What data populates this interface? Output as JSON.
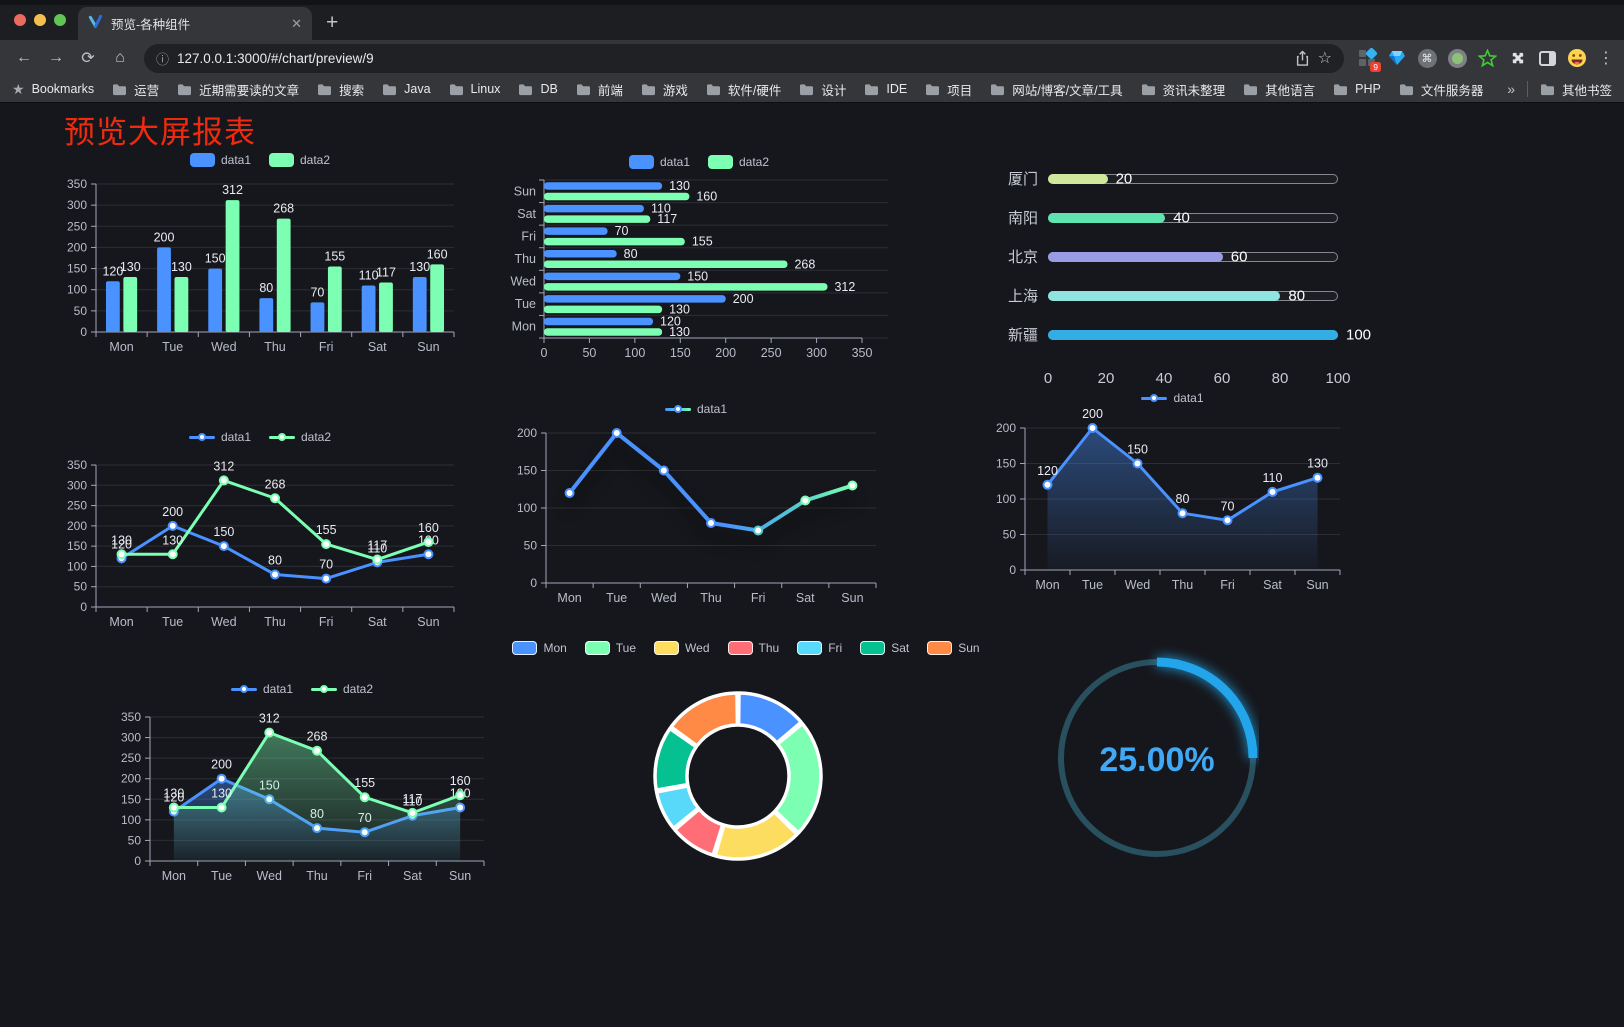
{
  "browser": {
    "tab_title": "预览-各种组件",
    "url": "127.0.0.1:3000/#/chart/preview/9",
    "extension_badge": "9",
    "icons": {
      "close": "✕",
      "plus": "+",
      "back": "←",
      "forward": "→",
      "reload": "⟳",
      "home": "⌂",
      "info": "ⓘ",
      "star": "☆",
      "kebab": "⋮",
      "command": "⌘"
    },
    "bookmarks_bar": {
      "root_label": "Bookmarks",
      "folders": [
        "运营",
        "近期需要读的文章",
        "搜索",
        "Java",
        "Linux",
        "DB",
        "前端",
        "游戏",
        "软件/硬件",
        "设计",
        "IDE",
        "项目",
        "网站/博客/文章/工具",
        "资讯未整理",
        "其他语言",
        "PHP",
        "文件服务器"
      ],
      "overflow": "»",
      "other": "其他书签"
    }
  },
  "page": {
    "title": "预览大屏报表",
    "title_color": "#f02a0e",
    "background": "#16171c"
  },
  "chart_data": [
    {
      "type": "bar",
      "legend": true,
      "labels": true,
      "categories": [
        "Mon",
        "Tue",
        "Wed",
        "Thu",
        "Fri",
        "Sat",
        "Sun"
      ],
      "ylim": [
        0,
        350
      ],
      "yticks": [
        0,
        50,
        100,
        150,
        200,
        250,
        300,
        350
      ],
      "series": [
        {
          "name": "data1",
          "color": "#4992ff",
          "values": [
            120,
            200,
            150,
            80,
            70,
            110,
            130
          ]
        },
        {
          "name": "data2",
          "color": "#7cffb2",
          "values": [
            130,
            130,
            312,
            268,
            155,
            117,
            160
          ]
        }
      ]
    },
    {
      "type": "hbar",
      "legend": true,
      "labels": true,
      "categories": [
        "Mon",
        "Tue",
        "Wed",
        "Thu",
        "Fri",
        "Sat",
        "Sun"
      ],
      "xlim": [
        0,
        350
      ],
      "xticks": [
        0,
        50,
        100,
        150,
        200,
        250,
        300,
        350
      ],
      "series": [
        {
          "name": "data1",
          "color": "#4992ff",
          "values": [
            120,
            200,
            150,
            80,
            70,
            110,
            130
          ]
        },
        {
          "name": "data2",
          "color": "#7cffb2",
          "values": [
            130,
            130,
            312,
            268,
            155,
            117,
            160
          ]
        }
      ]
    },
    {
      "type": "progress",
      "xlim": [
        0,
        100
      ],
      "xticks": [
        0,
        20,
        40,
        60,
        80,
        100
      ],
      "rows": [
        {
          "label": "厦门",
          "value": 20,
          "color": "#cfe89b"
        },
        {
          "label": "南阳",
          "value": 40,
          "color": "#5fe3b1"
        },
        {
          "label": "北京",
          "value": 60,
          "color": "#9a9ce3"
        },
        {
          "label": "上海",
          "value": 80,
          "color": "#8fe4e0"
        },
        {
          "label": "新疆",
          "value": 100,
          "color": "#33ade4"
        }
      ]
    },
    {
      "type": "line",
      "legend": true,
      "labels": true,
      "categories": [
        "Mon",
        "Tue",
        "Wed",
        "Thu",
        "Fri",
        "Sat",
        "Sun"
      ],
      "ylim": [
        0,
        350
      ],
      "yticks": [
        0,
        50,
        100,
        150,
        200,
        250,
        300,
        350
      ],
      "series": [
        {
          "name": "data1",
          "color": "#4992ff",
          "values": [
            120,
            200,
            150,
            80,
            70,
            110,
            130
          ]
        },
        {
          "name": "data2",
          "color": "#7cffb2",
          "values": [
            130,
            130,
            312,
            268,
            155,
            117,
            160
          ]
        }
      ]
    },
    {
      "type": "line",
      "legend": true,
      "labels": false,
      "gradient_line": true,
      "gradient_colors": [
        "#4992ff",
        "#55c9cf",
        "#7cffb2"
      ],
      "categories": [
        "Mon",
        "Tue",
        "Wed",
        "Thu",
        "Fri",
        "Sat",
        "Sun"
      ],
      "ylim": [
        0,
        200
      ],
      "yticks": [
        0,
        50,
        100,
        150,
        200
      ],
      "series": [
        {
          "name": "data1",
          "color": "#4992ff",
          "values": [
            120,
            200,
            150,
            80,
            70,
            110,
            130
          ]
        }
      ]
    },
    {
      "type": "area",
      "legend": true,
      "labels": true,
      "categories": [
        "Mon",
        "Tue",
        "Wed",
        "Thu",
        "Fri",
        "Sat",
        "Sun"
      ],
      "ylim": [
        0,
        200
      ],
      "yticks": [
        0,
        50,
        100,
        150,
        200
      ],
      "series": [
        {
          "name": "data1",
          "color": "#4992ff",
          "values": [
            120,
            200,
            150,
            80,
            70,
            110,
            130
          ]
        }
      ]
    },
    {
      "type": "area",
      "legend": true,
      "labels": true,
      "categories": [
        "Mon",
        "Tue",
        "Wed",
        "Thu",
        "Fri",
        "Sat",
        "Sun"
      ],
      "ylim": [
        0,
        350
      ],
      "yticks": [
        0,
        50,
        100,
        150,
        200,
        250,
        300,
        350
      ],
      "series": [
        {
          "name": "data1",
          "color": "#4992ff",
          "values": [
            120,
            200,
            150,
            80,
            70,
            110,
            130
          ]
        },
        {
          "name": "data2",
          "color": "#7cffb2",
          "values": [
            130,
            130,
            312,
            268,
            155,
            117,
            160
          ]
        }
      ]
    },
    {
      "type": "donut",
      "legend": true,
      "items": [
        {
          "label": "Mon",
          "value": 120,
          "color": "#4992ff"
        },
        {
          "label": "Tue",
          "value": 200,
          "color": "#7cffb2"
        },
        {
          "label": "Wed",
          "value": 150,
          "color": "#fddd60"
        },
        {
          "label": "Thu",
          "value": 80,
          "color": "#ff6e76"
        },
        {
          "label": "Fri",
          "value": 70,
          "color": "#58d9f9"
        },
        {
          "label": "Sat",
          "value": 110,
          "color": "#05c091"
        },
        {
          "label": "Sun",
          "value": 130,
          "color": "#ff8a45"
        }
      ]
    },
    {
      "type": "gauge",
      "text": "25.00%",
      "percent": 25,
      "progress_color": "#22a5ea",
      "track_color": "#29505e",
      "text_color": "#3fa9f5"
    }
  ]
}
